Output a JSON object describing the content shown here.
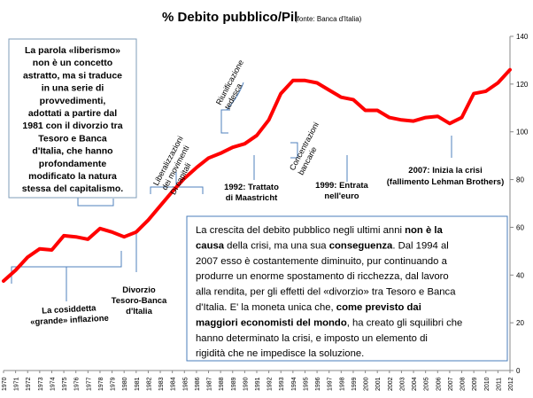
{
  "chart_data": {
    "type": "line",
    "title": "% Debito pubblico/Pil",
    "subtitle": "(fonte: Banca d'Italia)",
    "xlabel": "",
    "ylabel": "",
    "ylim": [
      0,
      140
    ],
    "yticks": [
      0,
      20,
      40,
      60,
      80,
      100,
      120,
      140
    ],
    "y_axis_position": "right",
    "grid": false,
    "line_color": "#ff0000",
    "x": [
      1970,
      1971,
      1972,
      1973,
      1974,
      1975,
      1976,
      1977,
      1978,
      1979,
      1980,
      1981,
      1982,
      1983,
      1984,
      1985,
      1986,
      1987,
      1988,
      1989,
      1990,
      1991,
      1992,
      1993,
      1994,
      1995,
      1996,
      1997,
      1998,
      1999,
      2000,
      2001,
      2002,
      2003,
      2004,
      2005,
      2006,
      2007,
      2008,
      2009,
      2010,
      2011,
      2012
    ],
    "series": [
      {
        "values": [
          37.5,
          42,
          47.5,
          51,
          50.5,
          56.5,
          56,
          55,
          59.5,
          58,
          56,
          58,
          63,
          69,
          75,
          80.5,
          85,
          89,
          91,
          93.5,
          95,
          98.5,
          105,
          116,
          121.5,
          121.5,
          120.5,
          117.5,
          114.5,
          113.5,
          109,
          109,
          106,
          105,
          104.5,
          106,
          106.5,
          103.5,
          106,
          116,
          117,
          120.5,
          126
        ]
      }
    ],
    "annotations": {
      "liberismo_box": [
        "La parola «liberismo»",
        "non è un concetto",
        "astratto, ma si traduce",
        "in una serie di",
        "provvedimenti,",
        "adottati a partire dal",
        "1981 con il divorzio tra",
        "Tesoro e Banca",
        "d'Italia, che hanno",
        "profondamente",
        "modificato la natura",
        "stessa del capitalismo."
      ],
      "liberalizzazioni": [
        "Liberalizzazioni",
        "dei movimenti",
        "Di capitali"
      ],
      "riunificazione": [
        "Riunificazione",
        "tedesca"
      ],
      "concentrazioni": [
        "Concentrazioni",
        "bancarie"
      ],
      "maastricht": [
        "1992: Trattato",
        "di Maastricht"
      ],
      "euro": [
        "1999: Entrata",
        "nell'euro"
      ],
      "crisi": [
        "2007: Inizia la crisi",
        "(fallimento Lehman Brothers)"
      ],
      "divorzio": [
        "Divorzio",
        "Tesoro-Banca",
        "d'Italia"
      ],
      "inflazione": [
        "La cosiddetta",
        "«grande» inflazione"
      ],
      "main_paragraph": [
        [
          {
            "t": "La crescita del debito pubblico negli ultimi anni "
          },
          {
            "t": "non è la",
            "b": true
          }
        ],
        [
          {
            "t": "causa",
            "b": true
          },
          {
            "t": " della  crisi, ma una sua "
          },
          {
            "t": "conseguenza",
            "b": true
          },
          {
            "t": ". Dal 1994 al"
          }
        ],
        [
          {
            "t": "2007 esso è costantemente diminuito, pur continuando a"
          }
        ],
        [
          {
            "t": "produrre  un enorme  spostamento di ricchezza, dal lavoro"
          }
        ],
        [
          {
            "t": "alla rendita, per gli effetti del «divorzio» tra Tesoro e Banca"
          }
        ],
        [
          {
            "t": "d'Italia.  E' la moneta unica che, "
          },
          {
            "t": "come previsto dai",
            "b": true
          }
        ],
        [
          {
            "t": "maggiori economisti del mondo",
            "b": true
          },
          {
            "t": ", ha creato gli squilibri che"
          }
        ],
        [
          {
            "t": "hanno determinato la crisi, e imposto un elemento di"
          }
        ],
        [
          {
            "t": "rigidità che ne impedisce la soluzione."
          }
        ]
      ]
    }
  }
}
